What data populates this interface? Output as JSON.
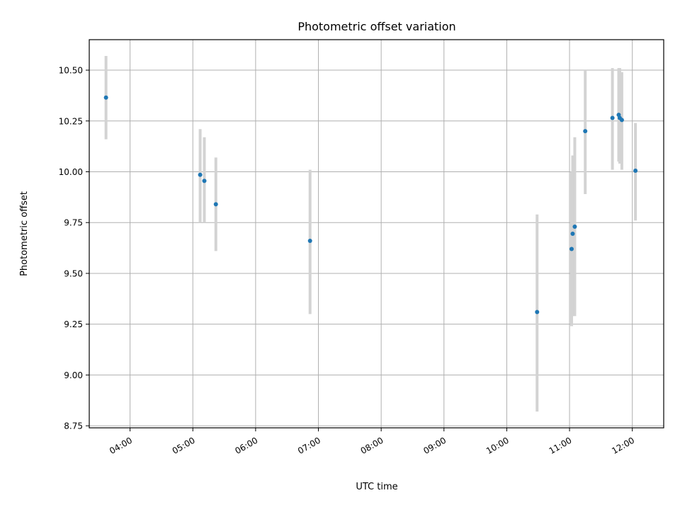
{
  "chart_data": {
    "type": "scatter",
    "title": "Photometric offset variation",
    "xlabel": "UTC time",
    "ylabel": "Photometric offset",
    "xlim": [
      "03:21",
      "12:30"
    ],
    "ylim": [
      8.74,
      10.65
    ],
    "grid": true,
    "x_ticks": [
      "04:00",
      "05:00",
      "06:00",
      "07:00",
      "08:00",
      "09:00",
      "10:00",
      "11:00",
      "12:00"
    ],
    "y_ticks": [
      "8.75",
      "9.00",
      "9.25",
      "9.50",
      "9.75",
      "10.00",
      "10.25",
      "10.50"
    ],
    "series": [
      {
        "marker_color": "#1f77b4",
        "errorbar_color": "#d3d3d3",
        "points": [
          {
            "x": "03:37",
            "y": 10.365,
            "lo": 10.16,
            "hi": 10.57
          },
          {
            "x": "05:07",
            "y": 9.985,
            "lo": 9.75,
            "hi": 10.21
          },
          {
            "x": "05:11",
            "y": 9.955,
            "lo": 9.75,
            "hi": 10.17
          },
          {
            "x": "05:22",
            "y": 9.84,
            "lo": 9.61,
            "hi": 10.07
          },
          {
            "x": "06:52",
            "y": 9.66,
            "lo": 9.3,
            "hi": 10.01
          },
          {
            "x": "10:29",
            "y": 9.31,
            "lo": 8.82,
            "hi": 9.79
          },
          {
            "x": "11:02",
            "y": 9.62,
            "lo": 9.24,
            "hi": 10.0
          },
          {
            "x": "11:03",
            "y": 9.695,
            "lo": 9.29,
            "hi": 10.08
          },
          {
            "x": "11:05",
            "y": 9.73,
            "lo": 9.29,
            "hi": 10.17
          },
          {
            "x": "11:15",
            "y": 10.2,
            "lo": 9.89,
            "hi": 10.5
          },
          {
            "x": "11:41",
            "y": 10.265,
            "lo": 10.01,
            "hi": 10.51
          },
          {
            "x": "11:47",
            "y": 10.28,
            "lo": 10.05,
            "hi": 10.51
          },
          {
            "x": "11:48",
            "y": 10.265,
            "lo": 10.04,
            "hi": 10.51
          },
          {
            "x": "11:50",
            "y": 10.255,
            "lo": 10.01,
            "hi": 10.49
          },
          {
            "x": "12:03",
            "y": 10.005,
            "lo": 9.76,
            "hi": 10.24
          }
        ]
      }
    ]
  }
}
